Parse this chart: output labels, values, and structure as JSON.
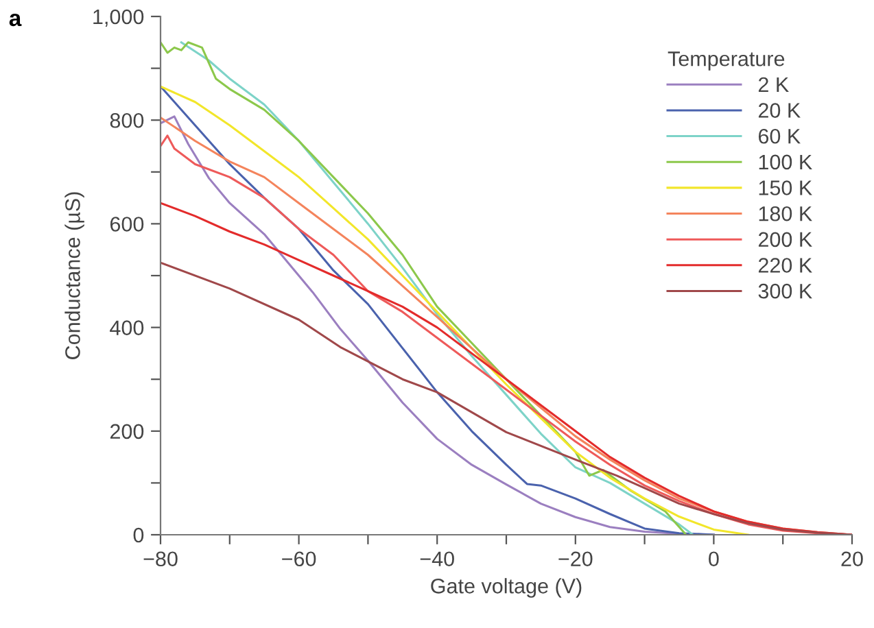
{
  "chart_data": {
    "type": "line",
    "xlabel": "Gate voltage (V)",
    "ylabel": "Conductance (µS)",
    "legend_title": "Temperature",
    "legend": "top right",
    "grid": false,
    "marker": "none",
    "line_style": "solid",
    "annotations": [
      "a"
    ],
    "xlim": [
      -80,
      20
    ],
    "ylim": [
      0,
      1000
    ],
    "xticks": [
      -80,
      {
        "value": -70,
        "label": null
      },
      -60,
      {
        "value": -50,
        "label": null
      },
      -40,
      {
        "value": -30,
        "label": null
      },
      -20,
      {
        "value": -10,
        "label": null
      },
      0,
      {
        "value": 10,
        "label": null
      },
      20
    ],
    "yticks": [
      0,
      {
        "value": 100,
        "label": null
      },
      200,
      {
        "value": 300,
        "label": null
      },
      400,
      {
        "value": 500,
        "label": null
      },
      600,
      {
        "value": 700,
        "label": null
      },
      800,
      {
        "value": 900,
        "label": null
      },
      {
        "value": 1000,
        "label": "1,000"
      }
    ],
    "series": [
      {
        "name": "2 K",
        "color": "#9b7fc0",
        "x": [
          -80,
          -78,
          -76,
          -73,
          -70,
          -65,
          -63,
          -58,
          -54,
          -50,
          -45,
          -40,
          -35,
          -30,
          -25,
          -20,
          -15,
          -10,
          -5,
          0
        ],
        "values": [
          794,
          807,
          754,
          688,
          640,
          580,
          548,
          468,
          397,
          336,
          255,
          185,
          135,
          97,
          60,
          34,
          15,
          6,
          2,
          0
        ]
      },
      {
        "name": "20 K",
        "color": "#4a62ad",
        "x": [
          -80,
          -75,
          -70,
          -65,
          -60,
          -55,
          -50,
          -45,
          -40,
          -35,
          -30,
          -27,
          -25,
          -20,
          -15,
          -10,
          -5,
          0
        ],
        "values": [
          865,
          790,
          715,
          650,
          590,
          510,
          445,
          360,
          275,
          200,
          135,
          98,
          95,
          70,
          40,
          12,
          3,
          0
        ]
      },
      {
        "name": "60 K",
        "color": "#7dd3c8",
        "x": [
          -77,
          -73,
          -70,
          -65,
          -60,
          -55,
          -50,
          -45,
          -40,
          -35,
          -30,
          -25,
          -20,
          -15,
          -10,
          -5,
          -3
        ],
        "values": [
          950,
          915,
          880,
          830,
          760,
          680,
          600,
          515,
          425,
          345,
          270,
          195,
          130,
          100,
          60,
          20,
          0
        ]
      },
      {
        "name": "100 K",
        "color": "#8cc84b",
        "x": [
          -80,
          -79,
          -78,
          -77,
          -76,
          -74,
          -72,
          -70,
          -65,
          -60,
          -55,
          -50,
          -45,
          -40,
          -35,
          -30,
          -25,
          -20,
          -18,
          -16,
          -12,
          -7,
          -4
        ],
        "values": [
          950,
          930,
          940,
          935,
          950,
          940,
          880,
          860,
          820,
          760,
          690,
          620,
          540,
          440,
          370,
          300,
          230,
          160,
          114,
          125,
          85,
          45,
          0
        ]
      },
      {
        "name": "150 K",
        "color": "#f2e62a",
        "x": [
          -80,
          -75,
          -70,
          -65,
          -60,
          -55,
          -50,
          -45,
          -40,
          -35,
          -30,
          -25,
          -20,
          -15,
          -10,
          -5,
          0,
          5
        ],
        "values": [
          865,
          835,
          790,
          740,
          690,
          630,
          570,
          500,
          430,
          360,
          290,
          225,
          160,
          110,
          70,
          35,
          10,
          0
        ]
      },
      {
        "name": "180 K",
        "color": "#f4845c",
        "x": [
          -80,
          -75,
          -70,
          -65,
          -60,
          -55,
          -50,
          -45,
          -40,
          -35,
          -30,
          -25,
          -20,
          -15,
          -10,
          -5,
          0,
          5,
          10,
          15,
          20
        ],
        "values": [
          805,
          760,
          720,
          690,
          640,
          590,
          540,
          480,
          420,
          360,
          300,
          245,
          190,
          145,
          105,
          70,
          45,
          25,
          12,
          5,
          0
        ]
      },
      {
        "name": "200 K",
        "color": "#ee5a5a",
        "x": [
          -80,
          -79,
          -78,
          -75,
          -70,
          -65,
          -60,
          -55,
          -50,
          -45,
          -40,
          -35,
          -30,
          -25,
          -20,
          -15,
          -10,
          -5,
          0,
          5,
          10,
          15,
          20
        ],
        "values": [
          750,
          770,
          745,
          715,
          690,
          650,
          590,
          540,
          470,
          430,
          380,
          330,
          280,
          230,
          180,
          135,
          95,
          65,
          40,
          20,
          8,
          3,
          0
        ]
      },
      {
        "name": "220 K",
        "color": "#e32b2b",
        "x": [
          -80,
          -75,
          -70,
          -65,
          -60,
          -55,
          -50,
          -45,
          -40,
          -35,
          -30,
          -25,
          -20,
          -15,
          -10,
          -5,
          0,
          5,
          10,
          15,
          20
        ],
        "values": [
          640,
          615,
          585,
          560,
          530,
          500,
          470,
          440,
          400,
          350,
          300,
          250,
          200,
          150,
          110,
          75,
          45,
          25,
          12,
          5,
          0
        ]
      },
      {
        "name": "300 K",
        "color": "#a0484a",
        "x": [
          -80,
          -70,
          -60,
          -54,
          -45,
          -40,
          -30,
          -20,
          -14,
          -10,
          -5,
          0,
          5,
          10,
          15,
          20
        ],
        "values": [
          525,
          475,
          415,
          362,
          300,
          275,
          198,
          145,
          114,
          90,
          60,
          40,
          22,
          10,
          4,
          0
        ]
      }
    ]
  }
}
